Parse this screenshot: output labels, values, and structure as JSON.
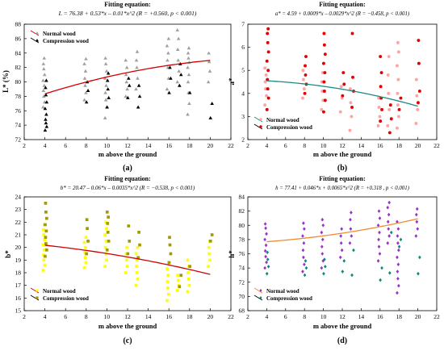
{
  "chart_data": [
    {
      "panel": "(a)",
      "type": "scatter",
      "title": "Fitting equation:",
      "subtitle": "L = 76.38 + 0.53*x – 0.01*x^2 (R = +0.560, p < 0.001)",
      "xlabel": "m above the ground",
      "ylabel": "L* (%)",
      "xlim": [
        2,
        22
      ],
      "ylim": [
        72,
        88
      ],
      "xticks": [
        2,
        4,
        6,
        8,
        10,
        12,
        14,
        16,
        18,
        20,
        22
      ],
      "yticks": [
        72,
        74,
        76,
        78,
        80,
        82,
        84,
        86,
        88
      ],
      "legend": [
        "Normal wood",
        "Compression wood"
      ],
      "legend_position": "top-left",
      "fit_coefficients": [
        76.38,
        0.53,
        -0.01
      ],
      "fit_range": [
        4,
        20
      ],
      "grid": false,
      "series": [
        {
          "name": "Normal wood",
          "marker": "triangle",
          "color": "#a0a0a0",
          "columns": [
            {
              "x": 4,
              "values": [
                76.5,
                77.2,
                78,
                78.8,
                79.5,
                80.2,
                81,
                81.8,
                82.5,
                83.3
              ]
            },
            {
              "x": 8,
              "values": [
                77.5,
                78.5,
                79.5,
                80.5,
                81.5,
                82.5,
                83.2
              ]
            },
            {
              "x": 10,
              "values": [
                75,
                76.5,
                77.5,
                78.5,
                79.5,
                80.5,
                81.5,
                82.5,
                83.3
              ]
            },
            {
              "x": 12,
              "values": [
                78,
                79,
                80,
                81,
                82,
                83
              ]
            },
            {
              "x": 13,
              "values": [
                79,
                80.5,
                82,
                83,
                84.2
              ]
            },
            {
              "x": 16,
              "values": [
                79,
                80.5,
                82,
                83,
                84,
                85,
                86
              ]
            },
            {
              "x": 17,
              "values": [
                80,
                81.5,
                83,
                84.5,
                86,
                87.2
              ]
            },
            {
              "x": 18,
              "values": [
                75.5,
                77,
                78.5,
                80,
                81,
                82,
                82.7,
                83.3,
                84,
                84.7
              ]
            },
            {
              "x": 20,
              "values": [
                80,
                81.5,
                82.8,
                84
              ]
            }
          ]
        },
        {
          "name": "Compression wood",
          "marker": "triangle",
          "color": "#000000",
          "columns": [
            {
              "x": 4,
              "values": [
                73.3,
                73.8,
                74.3,
                74.8,
                75.5,
                76.3,
                77.2,
                78.2,
                79.2,
                80.2
              ]
            },
            {
              "x": 8,
              "values": [
                77.2,
                78.8,
                80
              ]
            },
            {
              "x": 10,
              "values": [
                76.5,
                77.8,
                79,
                80.2,
                81.2
              ]
            },
            {
              "x": 12,
              "values": [
                77.8,
                79.5,
                80.5
              ]
            },
            {
              "x": 13,
              "values": [
                76.5,
                78,
                79.5
              ]
            },
            {
              "x": 16,
              "values": [
                78.5,
                80.5,
                82
              ]
            },
            {
              "x": 17,
              "values": [
                79.5,
                81,
                82.5
              ]
            },
            {
              "x": 18,
              "values": [
                78.5
              ]
            },
            {
              "x": 20,
              "values": [
                75,
                77
              ]
            }
          ]
        }
      ]
    },
    {
      "panel": "(b)",
      "type": "scatter",
      "title": "Fitting equation:",
      "subtitle": "a* = 4.59 + 0.0009*x – 0.0029*x^2 (R = −0.458, p < 0.001)",
      "xlabel": "m above the ground",
      "ylabel": "a*",
      "xlim": [
        2,
        22
      ],
      "ylim": [
        2,
        7
      ],
      "xticks": [
        2,
        4,
        6,
        8,
        10,
        12,
        14,
        16,
        18,
        20,
        22
      ],
      "yticks": [
        2,
        3,
        4,
        5,
        6,
        7
      ],
      "legend": [
        "Normal wood",
        "Compression wood"
      ],
      "legend_position": "bottom-left",
      "fit_coefficients": [
        4.59,
        0.0009,
        -0.0029
      ],
      "fit_range": [
        4,
        20
      ],
      "grid": false,
      "series": [
        {
          "name": "Normal wood",
          "marker": "circle",
          "color": "#ffa3a3",
          "columns": [
            {
              "x": 4,
              "values": [
                3.5,
                3.9,
                4.2,
                4.5,
                4.8,
                5.1
              ]
            },
            {
              "x": 8,
              "values": [
                3.8,
                4.2,
                4.6,
                5
              ]
            },
            {
              "x": 10,
              "values": [
                3.3,
                3.7,
                4.1,
                4.5,
                4.9
              ]
            },
            {
              "x": 12,
              "values": [
                3.2,
                3.8,
                4.3
              ]
            },
            {
              "x": 13,
              "values": [
                2.4,
                3,
                3.6,
                4.2
              ]
            },
            {
              "x": 16,
              "values": [
                2.6,
                3,
                3.4,
                3.8
              ]
            },
            {
              "x": 17,
              "values": [
                2.6,
                3.3,
                4,
                4.8,
                5.6
              ]
            },
            {
              "x": 18,
              "values": [
                2.5,
                3,
                3.5,
                4,
                4.6,
                5.2,
                5.8,
                6.2
              ]
            },
            {
              "x": 20,
              "values": [
                2.7,
                3.3,
                3.9,
                4.6
              ]
            }
          ]
        },
        {
          "name": "Compression wood",
          "marker": "circle",
          "color": "#e30000",
          "columns": [
            {
              "x": 4,
              "values": [
                3.3,
                3.8,
                4.2,
                4.6,
                5,
                5.4,
                5.8,
                6.2,
                6.6,
                6.8
              ]
            },
            {
              "x": 8,
              "values": [
                4,
                4.4,
                4.8,
                5.2,
                5.6
              ]
            },
            {
              "x": 10,
              "values": [
                3.2,
                3.7,
                4.1,
                4.5,
                4.9,
                5.3,
                5.7,
                6.1,
                6.6
              ]
            },
            {
              "x": 12,
              "values": [
                3.9,
                4.4,
                4.9
              ]
            },
            {
              "x": 13,
              "values": [
                3.4,
                4.1,
                4.7,
                6.6
              ]
            },
            {
              "x": 16,
              "values": [
                2.8,
                3.3,
                3.8,
                4.3,
                4.9,
                5.6
              ]
            },
            {
              "x": 17,
              "values": [
                2.3,
                2.9,
                3.5
              ]
            },
            {
              "x": 18,
              "values": [
                3.3,
                3.8
              ]
            },
            {
              "x": 20,
              "values": [
                3.6,
                4.1,
                5.3,
                6.3
              ]
            }
          ]
        }
      ]
    },
    {
      "panel": "(c)",
      "type": "scatter",
      "title": "Fitting equation:",
      "subtitle": "b* = 20.47 – 0.06*x – 0.0035*x^2 (R = −0.538, p < 0.001)",
      "xlabel": "m above the ground",
      "ylabel": "b*",
      "xlim": [
        2,
        22
      ],
      "ylim": [
        15,
        24
      ],
      "xticks": [
        2,
        4,
        6,
        8,
        10,
        12,
        14,
        16,
        18,
        20,
        22
      ],
      "yticks": [
        15,
        16,
        17,
        18,
        19,
        20,
        21,
        22,
        23,
        24
      ],
      "legend": [
        "Normal wood",
        "Compression wood"
      ],
      "legend_position": "bottom-left",
      "fit_coefficients": [
        20.47,
        -0.06,
        -0.0035
      ],
      "fit_range": [
        4,
        20
      ],
      "grid": false,
      "series": [
        {
          "name": "Normal wood",
          "marker": "square",
          "color": "#ffff00",
          "columns": [
            {
              "x": 4,
              "values": [
                18.2,
                18.6,
                19,
                19.4,
                19.8,
                20.2,
                20.6,
                21,
                21.4,
                21.8
              ]
            },
            {
              "x": 8,
              "values": [
                18.4,
                18.8,
                19.2,
                19.6,
                20,
                20.4,
                20.8
              ]
            },
            {
              "x": 10,
              "values": [
                18.5,
                19,
                19.5,
                20,
                20.5,
                21,
                21.5,
                22
              ]
            },
            {
              "x": 12,
              "values": [
                18,
                18.5,
                19,
                19.5,
                20
              ]
            },
            {
              "x": 13,
              "values": [
                17,
                17.5,
                18,
                18.5,
                19,
                19.5,
                20
              ]
            },
            {
              "x": 16,
              "values": [
                15.8,
                16.3,
                16.8,
                17.3,
                17.8,
                18.3,
                18.8
              ]
            },
            {
              "x": 17,
              "values": [
                16.6,
                17,
                17.4,
                17.8
              ]
            },
            {
              "x": 18,
              "values": [
                16.5,
                17,
                17.5,
                18,
                18.5,
                19
              ]
            },
            {
              "x": 20,
              "values": [
                18.5,
                19,
                19.5,
                20,
                20.5
              ]
            }
          ]
        },
        {
          "name": "Compression wood",
          "marker": "square",
          "color": "#a39a00",
          "columns": [
            {
              "x": 4,
              "values": [
                19.3,
                19.8,
                20.3,
                20.8,
                21.3,
                21.8,
                22.3,
                22.8,
                23.5
              ]
            },
            {
              "x": 8,
              "values": [
                19.5,
                20.5,
                21.5,
                22.2
              ]
            },
            {
              "x": 10,
              "values": [
                19.8,
                20.5,
                21.2,
                21.9,
                22.4,
                22.8
              ]
            },
            {
              "x": 12,
              "values": [
                19.5,
                20.5,
                21.7
              ]
            },
            {
              "x": 13,
              "values": [
                19.2,
                20.2,
                21.2
              ]
            },
            {
              "x": 16,
              "values": [
                18.8,
                19.5,
                20.2,
                20.8
              ]
            },
            {
              "x": 17,
              "values": [
                16.9,
                17.8
              ]
            },
            {
              "x": 18,
              "values": [
                18.5
              ]
            },
            {
              "x": 20,
              "values": [
                20.5,
                21
              ]
            }
          ]
        }
      ]
    },
    {
      "panel": "(d)",
      "type": "scatter",
      "title": "Fitting equation:",
      "subtitle": "h = 77.41 + 0.046*x + 0.0065*x^2 (R = +0.318 , p < 0.001)",
      "xlabel": "m above the ground",
      "ylabel": "h*",
      "xlim": [
        2,
        22
      ],
      "ylim": [
        68,
        84
      ],
      "xticks": [
        2,
        4,
        6,
        8,
        10,
        12,
        14,
        16,
        18,
        20,
        22
      ],
      "yticks": [
        68,
        70,
        72,
        74,
        76,
        78,
        80,
        82,
        84
      ],
      "legend": [
        "Normal wood",
        "Compression wood"
      ],
      "legend_position": "bottom-left",
      "fit_coefficients": [
        77.41,
        0.046,
        0.0065
      ],
      "fit_range": [
        4,
        20
      ],
      "grid": false,
      "series": [
        {
          "name": "Normal wood",
          "marker": "diamond",
          "color": "#9b30c8",
          "columns": [
            {
              "x": 4,
              "values": [
                74,
                74.8,
                75.6,
                76.4,
                77.2,
                78,
                78.8,
                79.6,
                80.2
              ]
            },
            {
              "x": 8,
              "values": [
                73.5,
                74.5,
                75.5,
                76.5,
                77.5,
                78.5,
                79.5,
                80.3
              ]
            },
            {
              "x": 10,
              "values": [
                74,
                75,
                76,
                77,
                78,
                79,
                80,
                80.8
              ]
            },
            {
              "x": 12,
              "values": [
                75.5,
                76.5,
                77.5,
                78.5,
                79.5
              ]
            },
            {
              "x": 13,
              "values": [
                77.5,
                78.5,
                79.5,
                80.8,
                81.8
              ]
            },
            {
              "x": 16,
              "values": [
                75,
                76,
                77,
                78,
                79,
                80,
                81,
                82
              ]
            },
            {
              "x": 17,
              "values": [
                77.5,
                78.5,
                79.5,
                80.5,
                81.5,
                82.5,
                83.2
              ]
            },
            {
              "x": 18,
              "values": [
                70.5,
                71.5,
                72.5,
                73.5,
                74.5,
                75.5,
                76.5,
                77.5,
                78.5,
                79.5,
                80.5
              ]
            },
            {
              "x": 20,
              "values": [
                78.5,
                79.5,
                80.5,
                81.5,
                82.3
              ]
            }
          ]
        },
        {
          "name": "Compression wood",
          "marker": "diamond",
          "color": "#0d8a7d",
          "columns": [
            {
              "x": 4,
              "values": [
                73.2,
                74.2,
                75.2,
                76.2
              ]
            },
            {
              "x": 8,
              "values": [
                73,
                74,
                75
              ]
            },
            {
              "x": 10,
              "values": [
                73.2,
                74.2,
                75.2
              ]
            },
            {
              "x": 12,
              "values": [
                73.5,
                75
              ]
            },
            {
              "x": 13,
              "values": [
                73,
                76.5
              ]
            },
            {
              "x": 16,
              "values": [
                72.3,
                74
              ]
            },
            {
              "x": 17,
              "values": [
                73.3,
                79
              ]
            },
            {
              "x": 18,
              "values": [
                77,
                78
              ]
            },
            {
              "x": 20,
              "values": [
                73.2,
                75.5
              ]
            }
          ]
        }
      ]
    }
  ]
}
